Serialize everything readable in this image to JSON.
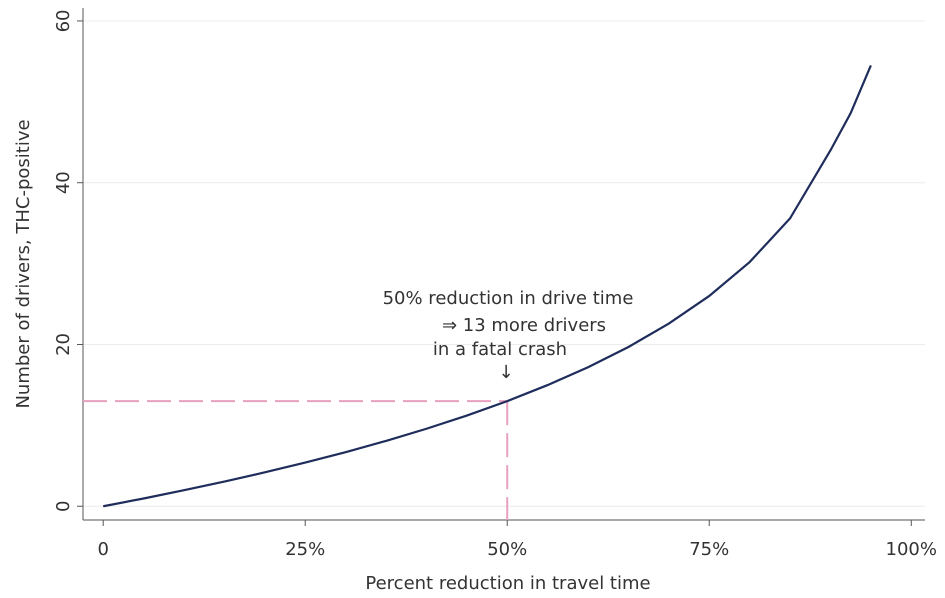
{
  "chart_data": {
    "type": "line",
    "x_label": "Percent reduction in travel time",
    "y_label": "Number of drivers, THC-positive",
    "x": [
      0,
      5,
      10,
      15,
      20,
      25,
      30,
      35,
      40,
      45,
      50,
      55,
      60,
      65,
      70,
      75,
      80,
      85,
      90,
      92.5,
      95
    ],
    "series": [
      {
        "color": "#1f2d5c",
        "values": [
          0,
          0.96,
          1.98,
          3.05,
          4.19,
          5.4,
          6.69,
          8.08,
          9.58,
          11.21,
          13.0,
          14.98,
          17.19,
          19.69,
          22.59,
          26.0,
          30.19,
          35.59,
          44.0,
          48.6,
          54.5
        ]
      }
    ],
    "xlim": [
      -2.5,
      101.7
    ],
    "ylim": [
      -1.7,
      61.6
    ],
    "xticks": [
      {
        "value": 0,
        "label": "0"
      },
      {
        "value": 25,
        "label": "25%"
      },
      {
        "value": 50,
        "label": "50%"
      },
      {
        "value": 75,
        "label": "75%"
      },
      {
        "value": 100,
        "label": "100%"
      }
    ],
    "yticks": [
      0,
      20,
      40,
      60
    ],
    "grid": true,
    "annotation": {
      "lines": [
        "50% reduction in drive time",
        "⇒ 13 more drivers",
        "in a fatal crash",
        "↓"
      ],
      "x": 50,
      "y": 13,
      "color": "#e8a0c0"
    }
  }
}
